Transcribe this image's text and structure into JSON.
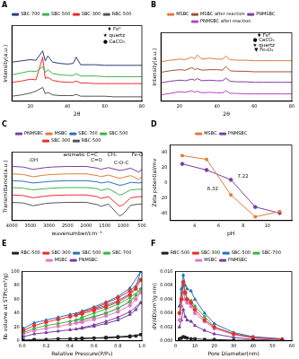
{
  "chart_data": [
    {
      "type": "line",
      "title": "A",
      "x_label": "2θ",
      "y_label": "Intensity(a.u.)",
      "x": [
        10,
        15,
        20,
        23,
        26.6,
        28,
        29.4,
        32,
        36,
        40,
        43,
        44.7,
        47,
        50,
        55,
        60,
        65,
        70,
        75,
        80
      ],
      "xlim": [
        10,
        80
      ],
      "xticks": [
        20,
        40,
        60,
        80
      ],
      "ylim": [
        0,
        120
      ],
      "tick_labels": "x",
      "grid": false,
      "legend": "top",
      "series": [
        {
          "name": "SBC-700",
          "color": "#2c3e7a",
          "marker": "none",
          "values": [
            62,
            64,
            66,
            65,
            80,
            64,
            72,
            62,
            60,
            59,
            60,
            70,
            58,
            58,
            58,
            57,
            57,
            57,
            57,
            57
          ]
        },
        {
          "name": "SBC-500",
          "color": "#3cb44b",
          "marker": "none",
          "values": [
            42,
            45,
            48,
            47,
            55,
            46,
            50,
            44,
            42,
            41,
            41,
            44,
            40,
            40,
            40,
            39,
            39,
            39,
            39,
            39
          ]
        },
        {
          "name": "SBC-300",
          "color": "#e8302a",
          "marker": "none",
          "values": [
            30,
            32,
            35,
            34,
            70,
            36,
            38,
            33,
            31,
            30,
            30,
            32,
            29,
            29,
            28,
            28,
            28,
            28,
            28,
            28
          ]
        },
        {
          "name": "RBC-500",
          "color": "#555555",
          "marker": "none",
          "values": [
            8,
            10,
            13,
            16,
            22,
            12,
            14,
            10,
            9,
            9,
            9,
            11,
            8,
            8,
            8,
            8,
            7,
            7,
            7,
            7
          ]
        }
      ],
      "annotations": [
        {
          "text": "♦ Fe⁰",
          "x": 65,
          "y": 115
        },
        {
          "text": "★ quartz",
          "x": 65,
          "y": 105
        },
        {
          "text": "● CaCO₃",
          "x": 65,
          "y": 95
        }
      ]
    },
    {
      "type": "line",
      "title": "B",
      "x_label": "2θ",
      "y_label": "Intensity(a.u.)",
      "x": [
        10,
        15,
        20,
        23,
        26.6,
        28,
        29.4,
        32,
        36,
        40,
        43,
        44.7,
        47,
        50,
        55,
        60,
        65,
        70,
        75,
        80
      ],
      "xlim": [
        10,
        80
      ],
      "xticks": [
        20,
        40,
        60,
        80
      ],
      "ylim": [
        0,
        130
      ],
      "tick_labels": "x",
      "grid": false,
      "legend": "top",
      "series": [
        {
          "name": "MSBC",
          "color": "#e07b39",
          "marker": "none",
          "values": [
            75,
            78,
            80,
            79,
            84,
            80,
            88,
            80,
            82,
            80,
            80,
            86,
            79,
            78,
            78,
            77,
            77,
            77,
            77,
            77
          ]
        },
        {
          "name": "MSBC after reaction",
          "color": "#a0522d",
          "marker": "none",
          "values": [
            55,
            58,
            60,
            59,
            64,
            60,
            62,
            59,
            60,
            60,
            59,
            66,
            58,
            57,
            57,
            56,
            56,
            56,
            56,
            56
          ]
        },
        {
          "name": "PNMSBC",
          "color": "#7b3fa0",
          "marker": "none",
          "values": [
            35,
            38,
            40,
            39,
            42,
            40,
            43,
            39,
            40,
            39,
            39,
            44,
            38,
            37,
            37,
            36,
            36,
            36,
            36,
            36
          ]
        },
        {
          "name": "PNMSBC after reaction",
          "color": "#c040c0",
          "marker": "none",
          "values": [
            12,
            15,
            18,
            17,
            20,
            17,
            19,
            16,
            17,
            16,
            16,
            20,
            15,
            15,
            14,
            14,
            14,
            14,
            14,
            14
          ]
        }
      ],
      "annotations": [
        {
          "text": "♦ Fe⁰",
          "x": 65,
          "y": 125
        },
        {
          "text": "● CaCO₃",
          "x": 65,
          "y": 116
        },
        {
          "text": "★ quartz",
          "x": 65,
          "y": 107
        },
        {
          "text": "▼ Fe₃O₄",
          "x": 65,
          "y": 98
        }
      ]
    },
    {
      "type": "line",
      "title": "C",
      "x_label": "wavenumber/cm⁻¹",
      "y_label": "Transmittance(a.u.)",
      "x": [
        4000,
        3700,
        3430,
        3100,
        2920,
        2500,
        2000,
        1700,
        1600,
        1400,
        1100,
        1000,
        800,
        580,
        500
      ],
      "xlim": [
        4000,
        500
      ],
      "xticks": [
        4000,
        3500,
        3000,
        2500,
        2000,
        1500,
        1000,
        500
      ],
      "ylim": [
        0,
        120
      ],
      "tick_labels": "x",
      "grid": false,
      "legend": "top",
      "series": [
        {
          "name": "PNMSBC",
          "color": "#7b3fa0",
          "marker": "none",
          "values": [
            95,
            94,
            90,
            93,
            94,
            95,
            95,
            92,
            90,
            93,
            88,
            89,
            92,
            85,
            90
          ]
        },
        {
          "name": "MSBC",
          "color": "#e07b39",
          "marker": "none",
          "values": [
            82,
            81,
            77,
            80,
            81,
            82,
            82,
            79,
            77,
            80,
            74,
            76,
            79,
            72,
            77
          ]
        },
        {
          "name": "SBC-700",
          "color": "#2c6fbb",
          "marker": "none",
          "values": [
            70,
            69,
            66,
            68,
            69,
            70,
            70,
            68,
            66,
            68,
            62,
            63,
            67,
            66,
            67
          ]
        },
        {
          "name": "SBC-500",
          "color": "#3cb44b",
          "marker": "none",
          "values": [
            58,
            57,
            54,
            56,
            57,
            58,
            58,
            56,
            53,
            56,
            45,
            47,
            54,
            55,
            55
          ]
        },
        {
          "name": "SBC-300",
          "color": "#e8302a",
          "marker": "none",
          "values": [
            45,
            44,
            40,
            43,
            44,
            45,
            45,
            42,
            39,
            42,
            25,
            28,
            40,
            42,
            42
          ]
        },
        {
          "name": "RBC-500",
          "color": "#555555",
          "marker": "none",
          "values": [
            32,
            31,
            26,
            30,
            31,
            32,
            32,
            28,
            25,
            29,
            8,
            12,
            27,
            29,
            29
          ]
        }
      ],
      "annotations": [
        {
          "text": "-OH",
          "x": 3430,
          "y": 106
        },
        {
          "text": "aromatic C=C",
          "x": 2150,
          "y": 116
        },
        {
          "text": "C=O",
          "x": 1720,
          "y": 106
        },
        {
          "text": "CH₂",
          "x": 1300,
          "y": 116
        },
        {
          "text": "C-O-C",
          "x": 1050,
          "y": 101
        },
        {
          "text": "Fe-O",
          "x": 620,
          "y": 116
        }
      ]
    },
    {
      "type": "line",
      "title": "D",
      "x_label": "pH",
      "y_label": "Zeta potential/mv",
      "xlim": [
        2,
        12
      ],
      "xticks": [
        4,
        6,
        8,
        10
      ],
      "ylim": [
        -50,
        50
      ],
      "yticks": [
        -40,
        -20,
        0,
        20,
        40
      ],
      "grid": false,
      "legend": "top",
      "series": [
        {
          "name": "MSBC",
          "color": "#e07b39",
          "marker": "square",
          "x": [
            3,
            5,
            7,
            9,
            11
          ],
          "values": [
            36,
            31,
            -16,
            -45,
            -38
          ]
        },
        {
          "name": "PNMSBC",
          "color": "#7b3fa0",
          "marker": "circle",
          "x": [
            3,
            5,
            7,
            9,
            11
          ],
          "values": [
            25,
            17,
            4,
            -32,
            -40
          ]
        }
      ],
      "annotations": [
        {
          "text": "6.32",
          "x": 5.5,
          "y": -8
        },
        {
          "text": "7.22",
          "x": 8,
          "y": 8
        }
      ]
    },
    {
      "type": "line",
      "title": "E",
      "x_label": "Relative Pressure(P/P₀)",
      "y_label": "N₂ volume at STP(cm³/g)",
      "x": [
        0.01,
        0.1,
        0.2,
        0.3,
        0.4,
        0.5,
        0.6,
        0.7,
        0.8,
        0.9,
        0.95,
        0.99,
        0.9,
        0.8,
        0.7,
        0.6,
        0.5,
        0.45
      ],
      "xlim": [
        0,
        1
      ],
      "xticks": [
        {
          "value": 0,
          "label": "0.0"
        },
        0.2,
        0.4,
        0.6,
        0.8,
        {
          "value": 1,
          "label": "1.0"
        }
      ],
      "ylim": [
        0,
        100
      ],
      "yticks": [
        0,
        20,
        40,
        60,
        80,
        100
      ],
      "grid": false,
      "legend": "top",
      "series": [
        {
          "name": "RBC-500",
          "color": "#222222",
          "marker": "square",
          "values": [
            1,
            2,
            2,
            3,
            3,
            3,
            4,
            4,
            5,
            6,
            7,
            9,
            7,
            6,
            5,
            4,
            4,
            3
          ]
        },
        {
          "name": "SBC-300",
          "color": "#e8302a",
          "marker": "circle",
          "values": [
            15,
            22,
            27,
            31,
            35,
            39,
            44,
            49,
            56,
            66,
            75,
            88,
            72,
            62,
            54,
            47,
            41,
            37
          ]
        },
        {
          "name": "SBC-500",
          "color": "#2c6fbb",
          "marker": "triangle",
          "values": [
            18,
            26,
            30,
            34,
            38,
            42,
            46,
            51,
            58,
            68,
            78,
            100,
            76,
            64,
            56,
            49,
            43,
            39
          ]
        },
        {
          "name": "SBC-700",
          "color": "#3cb44b",
          "marker": "diamond",
          "values": [
            12,
            18,
            22,
            25,
            28,
            31,
            35,
            40,
            47,
            57,
            66,
            75,
            62,
            53,
            46,
            40,
            34,
            30
          ]
        },
        {
          "name": "MSBC",
          "color": "#e377c2",
          "marker": "circle",
          "values": [
            10,
            15,
            18,
            21,
            24,
            27,
            31,
            36,
            42,
            51,
            60,
            70,
            56,
            47,
            40,
            34,
            29,
            26
          ]
        },
        {
          "name": "PNMSBC",
          "color": "#7b3fa0",
          "marker": "triangle",
          "values": [
            6,
            10,
            12,
            14,
            16,
            18,
            21,
            25,
            30,
            38,
            45,
            55,
            42,
            34,
            28,
            23,
            19,
            17
          ]
        }
      ]
    },
    {
      "type": "line",
      "title": "F",
      "x_label": "Pore Diameter(nm)",
      "y_label": "dV/dD(cm³/g·nm)",
      "x": [
        2,
        3,
        4,
        5,
        6,
        8,
        10,
        15,
        20,
        30,
        40,
        55
      ],
      "xlim": [
        0,
        60
      ],
      "xticks": [
        0,
        10,
        20,
        30,
        40,
        50,
        60
      ],
      "ylim": [
        0,
        0.01
      ],
      "yticks": [
        {
          "value": 0,
          "label": "0.000"
        },
        0.002,
        0.004,
        0.006,
        0.008,
        {
          "value": 0.01,
          "label": "0.010"
        }
      ],
      "grid": false,
      "legend": "top",
      "series": [
        {
          "name": "RBC-500",
          "color": "#222222",
          "marker": "square",
          "values": [
            0.0003,
            0.0004,
            0.0006,
            0.0005,
            0.0004,
            0.0003,
            0.0003,
            0.0002,
            0.0002,
            0.0001,
            0.0001,
            0
          ]
        },
        {
          "name": "SBC-300",
          "color": "#e8302a",
          "marker": "circle",
          "values": [
            0.004,
            0.006,
            0.0085,
            0.007,
            0.006,
            0.0055,
            0.0045,
            0.003,
            0.002,
            0.001,
            0.0005,
            0.0002
          ]
        },
        {
          "name": "SBC-500",
          "color": "#2c6fbb",
          "marker": "triangle",
          "values": [
            0.005,
            0.0075,
            0.0095,
            0.008,
            0.0075,
            0.0072,
            0.006,
            0.004,
            0.0025,
            0.0012,
            0.0006,
            0.0003
          ]
        },
        {
          "name": "SBC-700",
          "color": "#3cb44b",
          "marker": "diamond",
          "values": [
            0.004,
            0.006,
            0.008,
            0.0068,
            0.006,
            0.0058,
            0.005,
            0.0035,
            0.002,
            0.001,
            0.0005,
            0.0002
          ]
        },
        {
          "name": "MSBC",
          "color": "#e377c2",
          "marker": "circle",
          "values": [
            0.003,
            0.005,
            0.007,
            0.006,
            0.0055,
            0.005,
            0.004,
            0.0028,
            0.0018,
            0.0009,
            0.0004,
            0.0002
          ]
        },
        {
          "name": "PNMSBC",
          "color": "#7b3fa0",
          "marker": "triangle",
          "values": [
            0.002,
            0.003,
            0.0045,
            0.0035,
            0.003,
            0.0028,
            0.0022,
            0.0015,
            0.001,
            0.0005,
            0.0002,
            0.0001
          ]
        }
      ]
    }
  ]
}
